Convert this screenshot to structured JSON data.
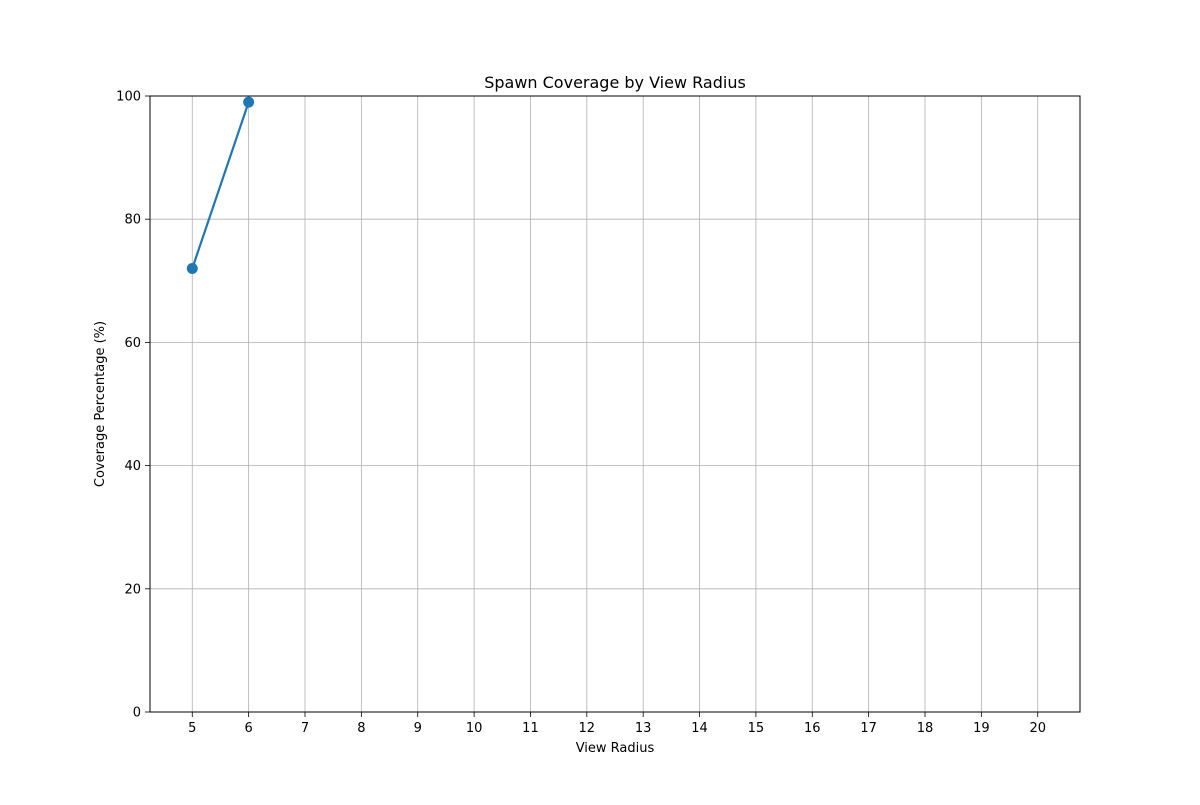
{
  "chart_data": {
    "type": "line",
    "title": "Spawn Coverage by View Radius",
    "xlabel": "View Radius",
    "ylabel": "Coverage Percentage (%)",
    "x_ticks": [
      5,
      6,
      7,
      8,
      9,
      10,
      11,
      12,
      13,
      14,
      15,
      16,
      17,
      18,
      19,
      20
    ],
    "y_ticks": [
      0,
      20,
      40,
      60,
      80,
      100
    ],
    "xlim": [
      4.25,
      20.75
    ],
    "ylim": [
      0,
      100
    ],
    "grid": true,
    "series": [
      {
        "x": [
          5,
          6
        ],
        "y": [
          72,
          99
        ],
        "color": "#1f77b4",
        "marker": "circle"
      }
    ]
  }
}
